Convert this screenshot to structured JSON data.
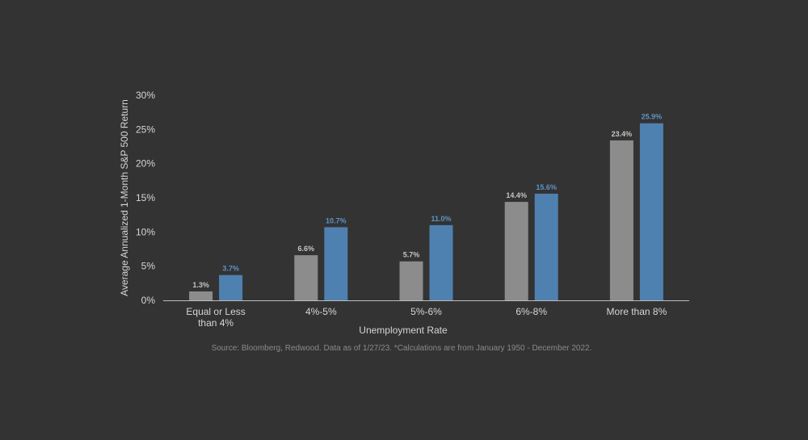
{
  "chart_data": {
    "type": "bar",
    "categories": [
      [
        "Equal or Less",
        "than 4%"
      ],
      [
        "4%-5%"
      ],
      [
        "5%-6%"
      ],
      [
        "6%-8%"
      ],
      [
        "More than 8%"
      ]
    ],
    "series": [
      {
        "values": [
          1.3,
          6.6,
          5.7,
          14.4,
          23.4
        ],
        "labels": [
          "1.3%",
          "6.6%",
          "5.7%",
          "14.4%",
          "23.4%"
        ],
        "color": "#8c8c8c",
        "label_color": "#c4c4c4"
      },
      {
        "values": [
          3.7,
          10.7,
          11.0,
          15.6,
          25.9
        ],
        "labels": [
          "3.7%",
          "10.7%",
          "11.0%",
          "15.6%",
          "25.9%"
        ],
        "color": "#4f81b0",
        "label_color": "#5f92c4"
      }
    ],
    "yticks": [
      0,
      5,
      10,
      15,
      20,
      25,
      30
    ],
    "ytick_labels": [
      "0%",
      "5%",
      "10%",
      "15%",
      "20%",
      "25%",
      "30%"
    ],
    "ylim": [
      0,
      30
    ],
    "xlabel": "Unemployment Rate",
    "ylabel": "Average Annualized 1-Month S&P 500 Return",
    "grid": false,
    "legend": "none",
    "note": "Source: Bloomberg, Redwood. Data as of 1/27/23. *Calculations are from January 1950 - December 2022."
  },
  "colors": {
    "background": "#333333",
    "axis_line": "#bdbdbd"
  }
}
